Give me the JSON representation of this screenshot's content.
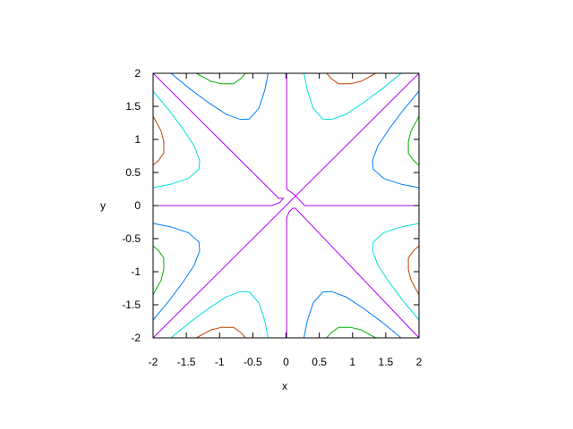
{
  "chart_data": {
    "type": "line",
    "subtype": "contour",
    "title": "",
    "xlabel": "x",
    "ylabel": "y",
    "xlim": [
      -2,
      2
    ],
    "ylim": [
      -2,
      2
    ],
    "xticks": [
      "-2",
      "-1.5",
      "-1",
      "-0.5",
      "0",
      "0.5",
      "1",
      "1.5",
      "2"
    ],
    "yticks": [
      "2",
      "1.5",
      "1",
      "0.5",
      "0",
      "-0.5",
      "-1",
      "-1.5",
      "-2"
    ],
    "grid": false,
    "legend": "none",
    "contours": [
      {
        "color": "#b000ff",
        "segments": [
          [
            [
              0.01,
              2
            ],
            [
              0.01,
              0.25
            ],
            [
              0.13,
              0.16
            ],
            [
              0.28,
              0
            ],
            [
              2,
              0
            ]
          ],
          [
            [
              -2,
              2
            ],
            [
              -0.11,
              0.11
            ],
            [
              -0.04,
              0.11
            ],
            [
              -0.1,
              0.04
            ],
            [
              -0.22,
              0
            ],
            [
              -2,
              0
            ]
          ],
          [
            [
              2,
              -2
            ],
            [
              0.14,
              -0.04
            ],
            [
              0.1,
              -0.04
            ],
            [
              0.05,
              -0.09
            ],
            [
              0.01,
              -0.18
            ],
            [
              0.01,
              -2
            ]
          ],
          [
            [
              -2,
              -2
            ],
            [
              2,
              2
            ]
          ]
        ]
      },
      {
        "color": "#00e0e0",
        "segments": [
          [
            [
              0.27,
              2
            ],
            [
              0.32,
              1.74
            ],
            [
              0.41,
              1.47
            ],
            [
              0.55,
              1.31
            ],
            [
              0.68,
              1.3
            ],
            [
              0.9,
              1.38
            ],
            [
              1.17,
              1.56
            ],
            [
              1.44,
              1.76
            ],
            [
              1.73,
              2
            ]
          ],
          [
            [
              -2,
              0.27
            ],
            [
              -1.74,
              0.32
            ],
            [
              -1.47,
              0.41
            ],
            [
              -1.31,
              0.55
            ],
            [
              -1.3,
              0.68
            ],
            [
              -1.38,
              0.9
            ],
            [
              -1.56,
              1.17
            ],
            [
              -1.76,
              1.44
            ],
            [
              -2,
              1.73
            ]
          ],
          [
            [
              2,
              -0.27
            ],
            [
              1.74,
              -0.32
            ],
            [
              1.47,
              -0.41
            ],
            [
              1.31,
              -0.55
            ],
            [
              1.3,
              -0.68
            ],
            [
              1.38,
              -0.9
            ],
            [
              1.56,
              -1.17
            ],
            [
              1.76,
              -1.44
            ],
            [
              2,
              -1.73
            ]
          ],
          [
            [
              -0.27,
              -2
            ],
            [
              -0.32,
              -1.74
            ],
            [
              -0.41,
              -1.47
            ],
            [
              -0.55,
              -1.31
            ],
            [
              -0.68,
              -1.3
            ],
            [
              -0.9,
              -1.38
            ],
            [
              -1.17,
              -1.56
            ],
            [
              -1.44,
              -1.76
            ],
            [
              -1.73,
              -2
            ]
          ]
        ]
      },
      {
        "color": "#0080ff",
        "segments": [
          [
            [
              2,
              0.27
            ],
            [
              1.74,
              0.32
            ],
            [
              1.47,
              0.41
            ],
            [
              1.31,
              0.55
            ],
            [
              1.3,
              0.68
            ],
            [
              1.38,
              0.9
            ],
            [
              1.56,
              1.17
            ],
            [
              1.76,
              1.44
            ],
            [
              2,
              1.73
            ]
          ],
          [
            [
              -0.27,
              2
            ],
            [
              -0.32,
              1.74
            ],
            [
              -0.41,
              1.47
            ],
            [
              -0.55,
              1.31
            ],
            [
              -0.68,
              1.3
            ],
            [
              -0.9,
              1.38
            ],
            [
              -1.17,
              1.56
            ],
            [
              -1.44,
              1.76
            ],
            [
              -1.73,
              2
            ]
          ],
          [
            [
              0.27,
              -2
            ],
            [
              0.32,
              -1.74
            ],
            [
              0.41,
              -1.47
            ],
            [
              0.55,
              -1.31
            ],
            [
              0.68,
              -1.3
            ],
            [
              0.9,
              -1.38
            ],
            [
              1.17,
              -1.56
            ],
            [
              1.44,
              -1.76
            ],
            [
              1.73,
              -2
            ]
          ],
          [
            [
              -2,
              -0.27
            ],
            [
              -1.74,
              -0.32
            ],
            [
              -1.47,
              -0.41
            ],
            [
              -1.31,
              -0.55
            ],
            [
              -1.3,
              -0.68
            ],
            [
              -1.38,
              -0.9
            ],
            [
              -1.56,
              -1.17
            ],
            [
              -1.76,
              -1.44
            ],
            [
              -2,
              -1.73
            ]
          ]
        ]
      },
      {
        "color": "#c04000",
        "segments": [
          [
            [
              0.61,
              2
            ],
            [
              0.68,
              1.92
            ],
            [
              0.79,
              1.84
            ],
            [
              0.97,
              1.84
            ],
            [
              1.13,
              1.88
            ],
            [
              1.35,
              2
            ]
          ],
          [
            [
              -2,
              0.61
            ],
            [
              -1.92,
              0.68
            ],
            [
              -1.84,
              0.79
            ],
            [
              -1.84,
              0.97
            ],
            [
              -1.88,
              1.13
            ],
            [
              -2,
              1.35
            ]
          ],
          [
            [
              2,
              -0.61
            ],
            [
              1.92,
              -0.68
            ],
            [
              1.84,
              -0.79
            ],
            [
              1.84,
              -0.97
            ],
            [
              1.88,
              -1.13
            ],
            [
              2,
              -1.35
            ]
          ],
          [
            [
              -0.61,
              -2
            ],
            [
              -0.68,
              -1.92
            ],
            [
              -0.79,
              -1.84
            ],
            [
              -0.97,
              -1.84
            ],
            [
              -1.13,
              -1.88
            ],
            [
              -1.35,
              -2
            ]
          ]
        ]
      },
      {
        "color": "#00b000",
        "segments": [
          [
            [
              2,
              0.61
            ],
            [
              1.92,
              0.68
            ],
            [
              1.84,
              0.79
            ],
            [
              1.84,
              0.97
            ],
            [
              1.88,
              1.13
            ],
            [
              2,
              1.35
            ]
          ],
          [
            [
              -0.61,
              2
            ],
            [
              -0.68,
              1.92
            ],
            [
              -0.79,
              1.84
            ],
            [
              -0.97,
              1.84
            ],
            [
              -1.13,
              1.88
            ],
            [
              -1.35,
              2
            ]
          ],
          [
            [
              0.61,
              -2
            ],
            [
              0.68,
              -1.92
            ],
            [
              0.79,
              -1.84
            ],
            [
              0.97,
              -1.84
            ],
            [
              1.13,
              -1.88
            ],
            [
              1.35,
              -2
            ]
          ],
          [
            [
              -2,
              -0.61
            ],
            [
              -1.92,
              -0.68
            ],
            [
              -1.84,
              -0.79
            ],
            [
              -1.84,
              -0.97
            ],
            [
              -1.88,
              -1.13
            ],
            [
              -2,
              -1.35
            ]
          ]
        ]
      }
    ]
  }
}
